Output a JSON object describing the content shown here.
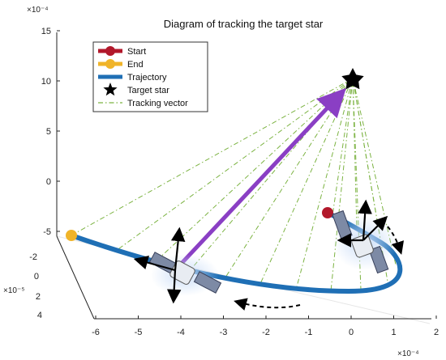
{
  "chart_data": {
    "type": "line",
    "title": "Diagram of tracking the target star",
    "axes": {
      "x": {
        "ticks": [
          "-6",
          "-5",
          "-4",
          "-3",
          "-2",
          "-1",
          "0",
          "1",
          "2"
        ],
        "exponent_label": "×10⁻⁴"
      },
      "y": {
        "ticks": [
          "4",
          "2",
          "0",
          "-2"
        ],
        "exponent_label": "×10⁻⁵"
      },
      "z": {
        "ticks": [
          "15",
          "10",
          "5",
          "0",
          "-5"
        ],
        "exponent_label": "×10⁻⁴"
      }
    },
    "legend": {
      "placement": "top-left",
      "entries": [
        {
          "label": "Start",
          "color": "#b2182b",
          "marker": "circle"
        },
        {
          "label": "End",
          "color": "#f0b429",
          "marker": "circle"
        },
        {
          "label": "Trajectory",
          "color": "#1f6fb5",
          "marker": "line"
        },
        {
          "label": "Target star",
          "color": "#000000",
          "marker": "star"
        },
        {
          "label": "Tracking vector",
          "color": "#7cb342",
          "marker": "dashdot"
        }
      ]
    },
    "series": [
      {
        "name": "Trajectory",
        "color": "#1f6fb5"
      },
      {
        "name": "Tracking vector",
        "color": "#7cb342"
      }
    ],
    "colors": {
      "pointing_vector": "#8a3fc4",
      "satellite_body": "#9aa3b5",
      "grid": "#e6e6e6"
    },
    "icons": [
      "satellite-icon",
      "star-icon",
      "axis-arrows-icon",
      "rotation-arrow-icon"
    ]
  }
}
